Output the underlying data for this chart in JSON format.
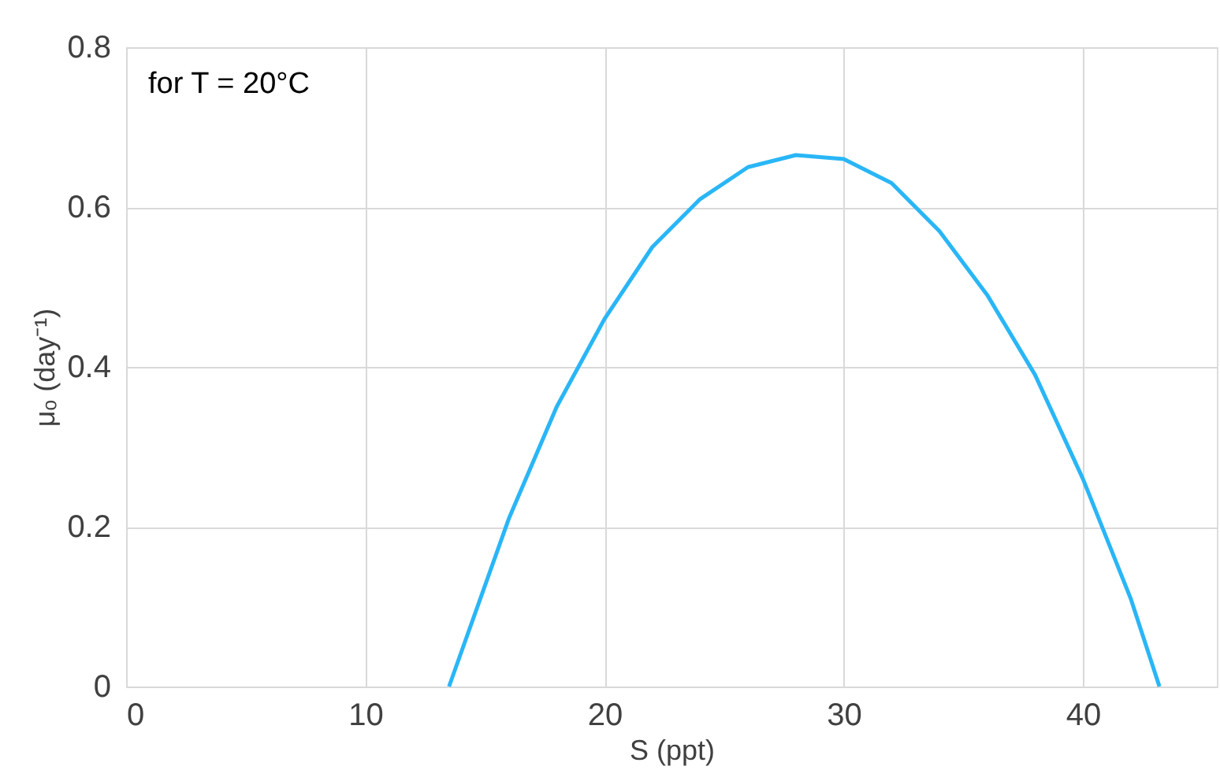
{
  "chart_data": {
    "type": "line",
    "xlabel": "S (ppt)",
    "ylabel": "μₒ (day⁻¹)",
    "annotations": [
      "for T = 20°C"
    ],
    "x": [
      13.5,
      16,
      18,
      20,
      22,
      24,
      26,
      28,
      30,
      32,
      34,
      36,
      38,
      40,
      42,
      43.2
    ],
    "series": [
      {
        "color": "#29b6f6",
        "values": [
          0,
          0.21,
          0.35,
          0.46,
          0.55,
          0.61,
          0.65,
          0.665,
          0.66,
          0.63,
          0.57,
          0.49,
          0.39,
          0.26,
          0.11,
          0
        ]
      }
    ],
    "xlim": [
      0,
      45.6
    ],
    "xticks": [
      0,
      10,
      20,
      30,
      40
    ],
    "ylim": [
      0,
      0.8
    ],
    "yticks": [
      0,
      0.2,
      0.4,
      0.6,
      0.8
    ],
    "grid": true,
    "marker": "none",
    "line_style": "solid"
  }
}
